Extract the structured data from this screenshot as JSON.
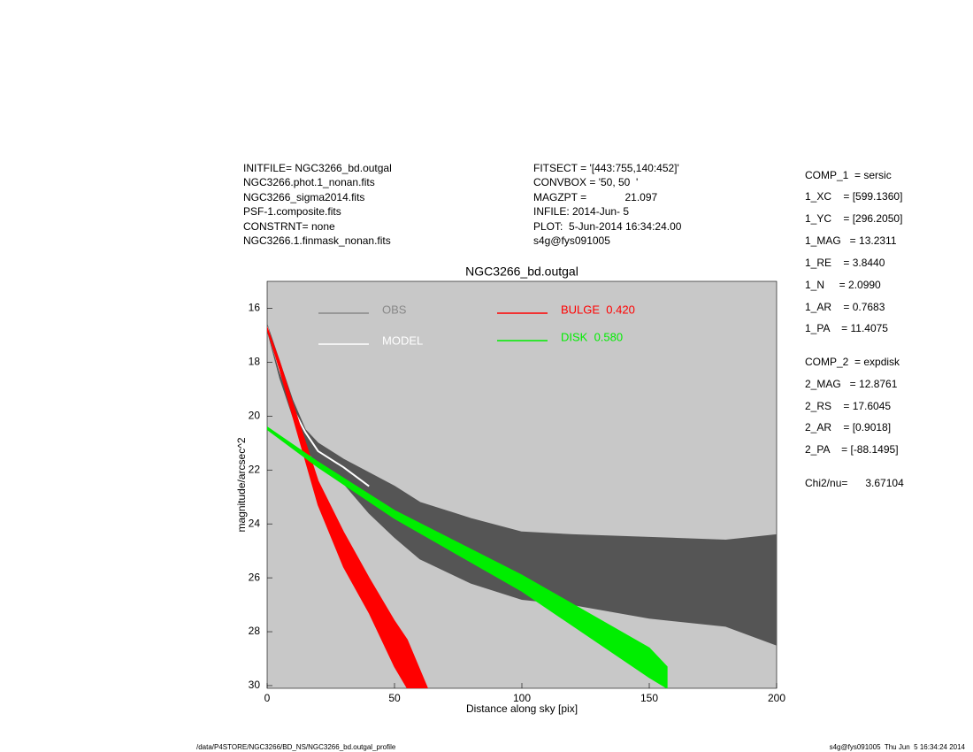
{
  "chart_data": {
    "type": "band",
    "title": "NGC3266_bd.outgal",
    "x_label": "Distance along sky [pix]",
    "y_label": "magnitude/arcsec^2",
    "xlim": [
      0,
      200
    ],
    "xticks": [
      0,
      50,
      100,
      150,
      200
    ],
    "ylim": [
      30.1,
      15.0
    ],
    "yticks": [
      16,
      18,
      20,
      22,
      24,
      26,
      28,
      30
    ],
    "background": "#c8c8c8",
    "series": [
      {
        "name": "OBS",
        "color": "#555555",
        "legend_color": "#888888",
        "x": [
          0,
          5,
          10,
          15,
          20,
          30,
          40,
          50,
          60,
          80,
          100,
          120,
          150,
          180,
          200
        ],
        "bright": [
          16.6,
          18.0,
          19.4,
          20.5,
          21.0,
          21.6,
          22.1,
          22.6,
          23.2,
          23.8,
          24.3,
          24.4,
          24.5,
          24.6,
          24.4
        ],
        "faint": [
          16.8,
          18.6,
          20.0,
          21.2,
          21.8,
          22.5,
          23.6,
          24.5,
          25.3,
          26.2,
          26.8,
          27.0,
          27.5,
          27.8,
          28.5
        ]
      },
      {
        "name": "MODEL",
        "color": "#ffffff",
        "x": [
          0,
          5,
          10,
          15,
          20,
          30,
          40
        ],
        "bright": [
          16.7,
          18.3,
          19.7,
          20.6,
          21.3,
          21.9,
          22.6
        ]
      },
      {
        "name": "BULGE  0.420",
        "color": "#ff0000",
        "x": [
          0,
          5,
          10,
          20,
          30,
          40,
          50,
          55,
          63
        ],
        "bright": [
          16.7,
          18.0,
          19.5,
          22.4,
          24.3,
          26.0,
          27.6,
          28.3,
          30.1
        ],
        "faint": [
          16.8,
          18.3,
          20.0,
          23.3,
          25.6,
          27.3,
          29.3,
          30.1,
          30.1
        ]
      },
      {
        "name": "DISK  0.580",
        "color": "#00ee00",
        "x": [
          0,
          20,
          50,
          100,
          150,
          157
        ],
        "bright": [
          20.4,
          21.7,
          23.5,
          25.9,
          28.6,
          29.3
        ],
        "faint": [
          20.5,
          21.9,
          23.8,
          26.5,
          29.7,
          30.1
        ]
      }
    ]
  },
  "info_left": [
    "INITFILE= NGC3266_bd.outgal",
    "NGC3266.phot.1_nonan.fits",
    "NGC3266_sigma2014.fits",
    "PSF-1.composite.fits",
    "CONSTRNT= none",
    "NGC3266.1.finmask_nonan.fits"
  ],
  "info_mid": [
    "FITSECT = '[443:755,140:452]'",
    "CONVBOX = '50, 50  '",
    "MAGZPT =             21.097",
    "INFILE: 2014-Jun- 5",
    "PLOT:  5-Jun-2014 16:34:24.00",
    "s4g@fys091005"
  ],
  "params": [
    "COMP_1  = sersic",
    "1_XC    = [599.1360]",
    "1_YC    = [296.2050]",
    "1_MAG   = 13.2311",
    "1_RE    = 3.8440",
    "1_N     = 2.0990",
    "1_AR    = 0.7683",
    "1_PA    = 11.4075",
    "COMP_2  = expdisk",
    "2_MAG   = 12.8761",
    "2_RS    = 17.6045",
    "2_AR    = [0.9018]",
    "2_PA    = [-88.1495]",
    "Chi2/nu=      3.67104"
  ],
  "footer_left": "/data/P4STORE/NGC3266/BD_NS/NGC3266_bd.outgal_profile",
  "footer_right": "s4g@fys091005  Thu Jun  5 16:34:24 2014"
}
